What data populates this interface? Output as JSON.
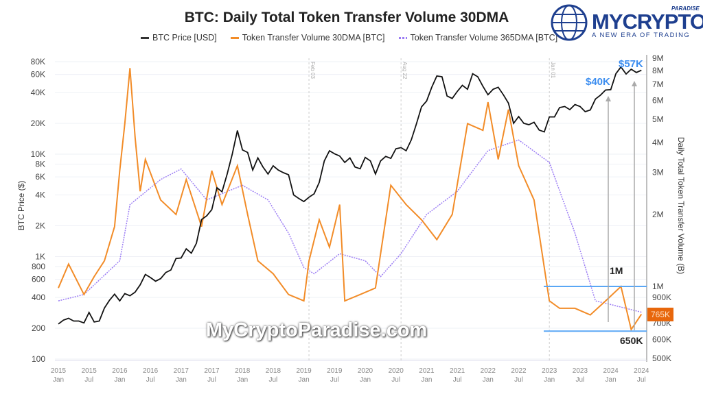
{
  "chart_data": {
    "type": "line",
    "title": "BTC: Daily Total Token Transfer Volume 30DMA",
    "ylabel_left": "BTC Price ($)",
    "ylabel_right": "Daily Total Token Transfer Volume (B)",
    "y_left_scale": "log",
    "y_right_scale": "log",
    "ylim_left": [
      100,
      100000
    ],
    "ylim_right": [
      500000,
      9000000
    ],
    "legend_placement": "top",
    "grid": true,
    "y_left_ticks": [
      "80K",
      "60K",
      "40K",
      "20K",
      "10K",
      "8K",
      "6K",
      "4K",
      "2K",
      "1K",
      "800",
      "600",
      "400",
      "200",
      "100"
    ],
    "y_left_tick_values": [
      80000,
      60000,
      40000,
      20000,
      10000,
      8000,
      6000,
      4000,
      2000,
      1000,
      800,
      600,
      400,
      200,
      100
    ],
    "y_right_ticks": [
      "9M",
      "8M",
      "7M",
      "6M",
      "5M",
      "4M",
      "3M",
      "2M",
      "1M",
      "900K",
      "700K",
      "600K",
      "500K"
    ],
    "y_right_tick_values": [
      9000000,
      8000000,
      7000000,
      6000000,
      5000000,
      4000000,
      3000000,
      2000000,
      1000000,
      900000,
      700000,
      600000,
      500000
    ],
    "x_ticks": [
      [
        "2015",
        "Jan"
      ],
      [
        "2015",
        "Jul"
      ],
      [
        "2016",
        "Jan"
      ],
      [
        "2016",
        "Jul"
      ],
      [
        "2017",
        "Jan"
      ],
      [
        "2017",
        "Jul"
      ],
      [
        "2018",
        "Jan"
      ],
      [
        "2018",
        "Jul"
      ],
      [
        "2019",
        "Jan"
      ],
      [
        "2019",
        "Jul"
      ],
      [
        "2020",
        "Jan"
      ],
      [
        "2020",
        "Jul"
      ],
      [
        "2021",
        "Jan"
      ],
      [
        "2021",
        "Jul"
      ],
      [
        "2022",
        "Jan"
      ],
      [
        "2022",
        "Jul"
      ],
      [
        "2023",
        "Jan"
      ],
      [
        "2023",
        "Jul"
      ],
      [
        "2024",
        "Jan"
      ],
      [
        "2024",
        "Jul"
      ]
    ],
    "event_lines": [
      {
        "date": "2019-02",
        "label": "Feb 03"
      },
      {
        "date": "2020-08",
        "label": "Aug 22"
      },
      {
        "date": "2023-01",
        "label": "Jan 01"
      }
    ],
    "series": [
      {
        "name": "BTC Price [USD]",
        "axis": "left",
        "color": "#111111",
        "start": "2015-01",
        "monthly": [
          220,
          240,
          250,
          235,
          235,
          225,
          285,
          230,
          235,
          315,
          375,
          430,
          370,
          435,
          415,
          450,
          530,
          670,
          625,
          575,
          610,
          700,
          740,
          960,
          970,
          1190,
          1080,
          1350,
          2300,
          2500,
          2870,
          4700,
          4300,
          6400,
          10000,
          17000,
          11000,
          10400,
          7000,
          9200,
          7500,
          6400,
          7700,
          7000,
          6600,
          6300,
          4000,
          3700,
          3450,
          3800,
          4100,
          5300,
          8600,
          10800,
          10100,
          9600,
          8300,
          9200,
          7500,
          7200,
          9300,
          8600,
          6400,
          8600,
          9500,
          9100,
          11300,
          11600,
          10800,
          13800,
          19700,
          29000,
          33000,
          45000,
          58000,
          57000,
          37000,
          35000,
          41000,
          47000,
          43000,
          61000,
          57000,
          46000,
          38000,
          43000,
          45000,
          38000,
          31500,
          20000,
          23300,
          20000,
          19400,
          20500,
          17200,
          16500,
          23100,
          23100,
          28500,
          29200,
          27200,
          30500,
          29200,
          26000,
          27000,
          34500,
          37700,
          42300,
          42600,
          61000,
          71000,
          60600,
          67500,
          62700,
          66000
        ]
      },
      {
        "name": "Token Transfer Volume 30DMA [BTC]",
        "axis": "right",
        "color": "#f28c28",
        "points": [
          [
            "2015-01",
            985000
          ],
          [
            "2015-03",
            1240000
          ],
          [
            "2015-06",
            925000
          ],
          [
            "2015-08",
            1100000
          ],
          [
            "2015-10",
            1280000
          ],
          [
            "2015-12",
            1780000
          ],
          [
            "2016-01",
            3050000
          ],
          [
            "2016-02",
            4800000
          ],
          [
            "2016-03",
            8200000
          ],
          [
            "2016-04",
            4200000
          ],
          [
            "2016-05",
            2500000
          ],
          [
            "2016-06",
            3400000
          ],
          [
            "2016-09",
            2300000
          ],
          [
            "2016-12",
            2000000
          ],
          [
            "2017-02",
            2800000
          ],
          [
            "2017-05",
            1780000
          ],
          [
            "2017-07",
            3050000
          ],
          [
            "2017-09",
            2200000
          ],
          [
            "2017-12",
            3200000
          ],
          [
            "2018-02",
            2000000
          ],
          [
            "2018-04",
            1280000
          ],
          [
            "2018-07",
            1130000
          ],
          [
            "2018-10",
            925000
          ],
          [
            "2019-01",
            870000
          ],
          [
            "2019-02",
            1280000
          ],
          [
            "2019-04",
            1900000
          ],
          [
            "2019-06",
            1460000
          ],
          [
            "2019-08",
            2200000
          ],
          [
            "2019-09",
            870000
          ],
          [
            "2019-12",
            925000
          ],
          [
            "2020-03",
            985000
          ],
          [
            "2020-06",
            2650000
          ],
          [
            "2020-09",
            2200000
          ],
          [
            "2020-12",
            1900000
          ],
          [
            "2021-03",
            1570000
          ],
          [
            "2021-06",
            2000000
          ],
          [
            "2021-09",
            4800000
          ],
          [
            "2021-12",
            4500000
          ],
          [
            "2022-01",
            5900000
          ],
          [
            "2022-03",
            3400000
          ],
          [
            "2022-05",
            5500000
          ],
          [
            "2022-07",
            3200000
          ],
          [
            "2022-10",
            2300000
          ],
          [
            "2022-12",
            1200000
          ],
          [
            "2023-01",
            870000
          ],
          [
            "2023-03",
            810000
          ],
          [
            "2023-06",
            810000
          ],
          [
            "2023-09",
            760000
          ],
          [
            "2023-12",
            870000
          ],
          [
            "2024-03",
            1000000
          ],
          [
            "2024-05",
            660000
          ],
          [
            "2024-07",
            765000
          ]
        ]
      },
      {
        "name": "Token Transfer Volume 365DMA [BTC]",
        "axis": "right",
        "color": "#9b7cf4",
        "points": [
          [
            "2015-01",
            870000
          ],
          [
            "2015-06",
            925000
          ],
          [
            "2016-01",
            1280000
          ],
          [
            "2016-03",
            2200000
          ],
          [
            "2016-09",
            2800000
          ],
          [
            "2017-01",
            3100000
          ],
          [
            "2017-06",
            2300000
          ],
          [
            "2018-01",
            2650000
          ],
          [
            "2018-06",
            2300000
          ],
          [
            "2018-10",
            1670000
          ],
          [
            "2019-01",
            1200000
          ],
          [
            "2019-03",
            1130000
          ],
          [
            "2019-08",
            1370000
          ],
          [
            "2020-01",
            1280000
          ],
          [
            "2020-04",
            1100000
          ],
          [
            "2020-08",
            1370000
          ],
          [
            "2021-01",
            2000000
          ],
          [
            "2021-07",
            2500000
          ],
          [
            "2022-01",
            3700000
          ],
          [
            "2022-07",
            4100000
          ],
          [
            "2023-01",
            3300000
          ],
          [
            "2023-06",
            1670000
          ],
          [
            "2023-10",
            870000
          ],
          [
            "2024-01",
            840000
          ],
          [
            "2024-07",
            780000
          ]
        ]
      }
    ],
    "annotations": {
      "price_40k": "$40K",
      "price_57k": "$57K",
      "upper_band_label": "1M",
      "upper_band_value": 1000000,
      "lower_band_label": "650K",
      "lower_band_value": 650000,
      "current_badge": "765K",
      "current_value": 765000
    }
  },
  "legend": [
    "BTC Price [USD]",
    "Token Transfer Volume 30DMA [BTC]",
    "Token Transfer Volume 365DMA [BTC]"
  ],
  "logo": {
    "name": "MYCRYPTO",
    "sup": "PARADISE",
    "tagline": "A NEW ERA OF TRADING"
  },
  "watermark": "MyCryptoParadise.com",
  "colors": {
    "accent_blue": "#3d8ef0",
    "badge": "#e8670c"
  }
}
